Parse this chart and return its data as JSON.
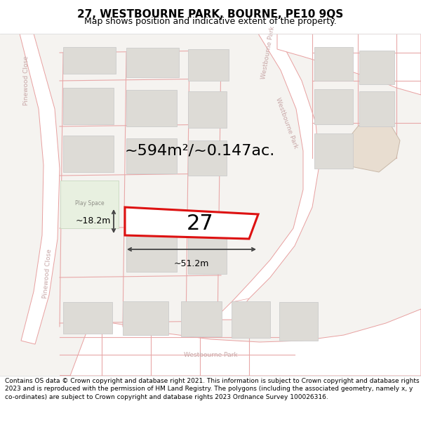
{
  "title": "27, WESTBOURNE PARK, BOURNE, PE10 9QS",
  "subtitle": "Map shows position and indicative extent of the property.",
  "footer": "Contains OS data © Crown copyright and database right 2021. This information is subject to Crown copyright and database rights 2023 and is reproduced with the permission of HM Land Registry. The polygons (including the associated geometry, namely x, y co-ordinates) are subject to Crown copyright and database rights 2023 Ordnance Survey 100026316.",
  "area_text": "~594m²/~0.147ac.",
  "property_label": "27",
  "width_label": "~51.2m",
  "height_label": "~18.2m",
  "bg_color": "#f5f3f0",
  "road_color": "#ffffff",
  "road_edge_color": "#e8a0a0",
  "parcel_line_color": "#e8a8a8",
  "building_color": "#dddbd6",
  "building_edge_color": "#cccccc",
  "highlight_color": "#dd1111",
  "play_color": "#e8f0e0",
  "road_text_color": "#c8a8a8",
  "tan_fill": "#e8ddd0",
  "title_fontsize": 11,
  "subtitle_fontsize": 9,
  "footer_fontsize": 6.5,
  "area_fontsize": 16,
  "label_fontsize": 22,
  "dim_fontsize": 9
}
